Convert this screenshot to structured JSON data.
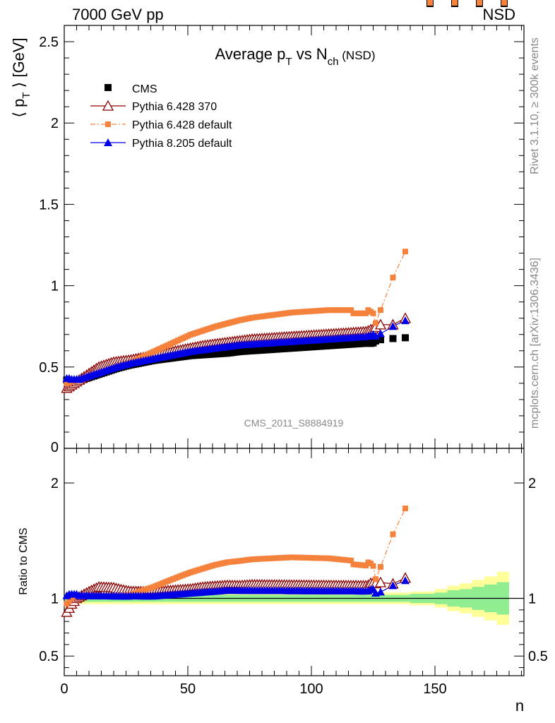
{
  "header": {
    "left": "7000 GeV pp",
    "right": "NSD"
  },
  "side_notes": {
    "rivet": "Rivet 3.1.10, ≥ 300k events",
    "mcplots": "mcplots.cern.ch [arXiv:1306.3436]"
  },
  "colors": {
    "cms": "#000000",
    "py6_370": "#8b0000",
    "py6_default": "#f5823c",
    "py8": "#0000e6",
    "band_inner": "#90ee90",
    "band_outer": "#ffff99"
  },
  "chart_data": [
    {
      "type": "scatter",
      "title": "Average p_T vs N_ch (NSD)",
      "title_parts": {
        "main": "Average p",
        "sub1": "T",
        "mid": " vs N",
        "sub2": "ch",
        "tail": " (NSD)"
      },
      "ylabel": "⟨ p_T ⟩ [GeV]",
      "ylabel_parts": {
        "pre": "⟨ p",
        "sub": "T",
        "post": " ⟩ [GeV]"
      },
      "analysis_label": "CMS_2011_S8884919",
      "xlim": [
        0,
        186
      ],
      "ylim": [
        0,
        2.6
      ],
      "yticks": [
        0.5,
        1,
        1.5,
        2,
        2.5
      ],
      "ytick_labels": [
        "0.5",
        "1",
        "1.5",
        "2",
        "2.5"
      ],
      "bottom_tick_label": "0",
      "legend_position": "top-left",
      "x": [
        1,
        2,
        3,
        4,
        5,
        6,
        7,
        8,
        9,
        10,
        11,
        12,
        13,
        14,
        15,
        16,
        17,
        18,
        19,
        20,
        21,
        22,
        23,
        24,
        25,
        26,
        27,
        28,
        29,
        30,
        31,
        32,
        33,
        34,
        35,
        36,
        37,
        38,
        39,
        40,
        41,
        42,
        43,
        44,
        45,
        46,
        47,
        48,
        49,
        50,
        51,
        52,
        53,
        54,
        55,
        56,
        57,
        58,
        59,
        60,
        61,
        62,
        63,
        64,
        65,
        66,
        67,
        68,
        69,
        70,
        71,
        72,
        73,
        74,
        75,
        76,
        77,
        78,
        79,
        80,
        81,
        82,
        83,
        84,
        85,
        86,
        87,
        88,
        89,
        90,
        91,
        92,
        93,
        94,
        95,
        96,
        97,
        98,
        99,
        100,
        101,
        102,
        103,
        104,
        105,
        106,
        107,
        108,
        109,
        110,
        111,
        112,
        113,
        114,
        115,
        116,
        117,
        118,
        119,
        120,
        121,
        122,
        123,
        124,
        125,
        126,
        128,
        133,
        138,
        148,
        158,
        168,
        178
      ],
      "series": [
        {
          "name": "CMS",
          "marker": "square",
          "values": [
            0.42,
            0.415,
            0.41,
            0.41,
            0.41,
            0.415,
            0.42,
            0.425,
            0.43,
            0.435,
            0.44,
            0.445,
            0.45,
            0.455,
            0.46,
            0.465,
            0.47,
            0.475,
            0.48,
            0.485,
            0.49,
            0.494,
            0.498,
            0.502,
            0.506,
            0.51,
            0.513,
            0.516,
            0.519,
            0.522,
            0.525,
            0.528,
            0.531,
            0.534,
            0.537,
            0.54,
            0.542,
            0.544,
            0.546,
            0.548,
            0.55,
            0.552,
            0.554,
            0.556,
            0.558,
            0.56,
            0.562,
            0.564,
            0.566,
            0.568,
            0.57,
            0.571,
            0.572,
            0.573,
            0.574,
            0.575,
            0.576,
            0.577,
            0.578,
            0.579,
            0.58,
            0.581,
            0.582,
            0.583,
            0.584,
            0.585,
            0.587,
            0.589,
            0.591,
            0.593,
            0.595,
            0.596,
            0.597,
            0.598,
            0.599,
            0.6,
            0.601,
            0.602,
            0.603,
            0.604,
            0.605,
            0.606,
            0.607,
            0.608,
            0.609,
            0.61,
            0.611,
            0.612,
            0.613,
            0.614,
            0.615,
            0.616,
            0.617,
            0.618,
            0.619,
            0.62,
            0.621,
            0.622,
            0.623,
            0.624,
            0.625,
            0.626,
            0.627,
            0.628,
            0.629,
            0.63,
            0.631,
            0.632,
            0.633,
            0.634,
            0.635,
            0.636,
            0.637,
            0.638,
            0.639,
            0.64,
            0.641,
            0.642,
            0.643,
            0.644,
            0.645,
            0.646,
            0.648,
            0.645,
            0.648,
            0.66,
            0.668,
            0.675,
            0.68
          ]
        },
        {
          "name": "Pythia 6.428 370",
          "marker": "open-triangle",
          "line": "solid",
          "values": [
            0.37,
            0.38,
            0.39,
            0.4,
            0.41,
            0.42,
            0.43,
            0.44,
            0.45,
            0.46,
            0.47,
            0.48,
            0.49,
            0.5,
            0.505,
            0.51,
            0.515,
            0.52,
            0.525,
            0.53,
            0.532,
            0.534,
            0.536,
            0.538,
            0.54,
            0.542,
            0.544,
            0.547,
            0.55,
            0.553,
            0.556,
            0.559,
            0.562,
            0.565,
            0.568,
            0.571,
            0.574,
            0.577,
            0.58,
            0.583,
            0.586,
            0.589,
            0.592,
            0.595,
            0.598,
            0.601,
            0.604,
            0.607,
            0.61,
            0.613,
            0.616,
            0.619,
            0.622,
            0.625,
            0.628,
            0.631,
            0.633,
            0.635,
            0.637,
            0.639,
            0.641,
            0.643,
            0.645,
            0.647,
            0.649,
            0.651,
            0.653,
            0.655,
            0.657,
            0.659,
            0.661,
            0.663,
            0.665,
            0.667,
            0.669,
            0.671,
            0.672,
            0.673,
            0.674,
            0.675,
            0.676,
            0.677,
            0.678,
            0.679,
            0.68,
            0.681,
            0.682,
            0.683,
            0.684,
            0.685,
            0.686,
            0.687,
            0.688,
            0.689,
            0.69,
            0.691,
            0.692,
            0.693,
            0.694,
            0.695,
            0.696,
            0.697,
            0.698,
            0.699,
            0.7,
            0.701,
            0.702,
            0.703,
            0.704,
            0.705,
            0.706,
            0.707,
            0.708,
            0.709,
            0.71,
            0.711,
            0.712,
            0.713,
            0.714,
            0.715,
            0.716,
            0.717,
            0.722,
            0.73,
            0.735,
            0.745,
            0.76,
            0.76,
            0.8
          ]
        },
        {
          "name": "Pythia 6.428 default",
          "marker": "square-small",
          "line": "dashdot",
          "values": [
            0.4,
            0.405,
            0.41,
            0.415,
            0.42,
            0.425,
            0.43,
            0.435,
            0.44,
            0.445,
            0.45,
            0.455,
            0.46,
            0.465,
            0.47,
            0.475,
            0.48,
            0.485,
            0.49,
            0.495,
            0.5,
            0.505,
            0.51,
            0.515,
            0.52,
            0.525,
            0.53,
            0.537,
            0.544,
            0.551,
            0.558,
            0.565,
            0.572,
            0.579,
            0.586,
            0.593,
            0.6,
            0.607,
            0.614,
            0.621,
            0.628,
            0.635,
            0.642,
            0.649,
            0.656,
            0.663,
            0.67,
            0.677,
            0.684,
            0.691,
            0.698,
            0.703,
            0.708,
            0.713,
            0.718,
            0.723,
            0.728,
            0.733,
            0.738,
            0.743,
            0.748,
            0.752,
            0.756,
            0.76,
            0.764,
            0.768,
            0.772,
            0.776,
            0.78,
            0.784,
            0.788,
            0.791,
            0.794,
            0.797,
            0.8,
            0.803,
            0.805,
            0.807,
            0.809,
            0.811,
            0.813,
            0.815,
            0.817,
            0.819,
            0.821,
            0.823,
            0.825,
            0.827,
            0.829,
            0.831,
            0.833,
            0.835,
            0.836,
            0.837,
            0.838,
            0.839,
            0.84,
            0.841,
            0.842,
            0.843,
            0.844,
            0.845,
            0.846,
            0.847,
            0.848,
            0.849,
            0.85,
            0.85,
            0.85,
            0.85,
            0.85,
            0.85,
            0.85,
            0.85,
            0.85,
            0.85,
            0.83,
            0.83,
            0.83,
            0.83,
            0.83,
            0.83,
            0.85,
            0.84,
            0.83,
            0.77,
            0.85,
            1.05,
            1.21
          ]
        },
        {
          "name": "Pythia 8.205 default",
          "marker": "filled-triangle",
          "line": "solid",
          "values": [
            0.43,
            0.43,
            0.425,
            0.425,
            0.425,
            0.425,
            0.43,
            0.435,
            0.44,
            0.445,
            0.45,
            0.455,
            0.46,
            0.465,
            0.47,
            0.475,
            0.48,
            0.485,
            0.49,
            0.495,
            0.5,
            0.504,
            0.508,
            0.512,
            0.516,
            0.52,
            0.524,
            0.527,
            0.53,
            0.533,
            0.536,
            0.539,
            0.542,
            0.545,
            0.548,
            0.551,
            0.554,
            0.557,
            0.56,
            0.563,
            0.566,
            0.569,
            0.572,
            0.575,
            0.578,
            0.581,
            0.584,
            0.587,
            0.59,
            0.593,
            0.596,
            0.598,
            0.6,
            0.602,
            0.604,
            0.606,
            0.608,
            0.61,
            0.612,
            0.614,
            0.616,
            0.618,
            0.62,
            0.622,
            0.624,
            0.626,
            0.628,
            0.63,
            0.632,
            0.634,
            0.636,
            0.637,
            0.638,
            0.639,
            0.64,
            0.641,
            0.642,
            0.643,
            0.644,
            0.645,
            0.646,
            0.647,
            0.648,
            0.649,
            0.65,
            0.651,
            0.652,
            0.653,
            0.654,
            0.655,
            0.656,
            0.657,
            0.658,
            0.659,
            0.66,
            0.661,
            0.662,
            0.663,
            0.664,
            0.665,
            0.666,
            0.667,
            0.668,
            0.669,
            0.67,
            0.671,
            0.672,
            0.673,
            0.674,
            0.675,
            0.676,
            0.677,
            0.678,
            0.679,
            0.68,
            0.681,
            0.682,
            0.683,
            0.684,
            0.685,
            0.686,
            0.687,
            0.69,
            0.695,
            0.7,
            0.69,
            0.705,
            0.75,
            0.785
          ]
        }
      ]
    },
    {
      "type": "scatter",
      "ylabel": "Ratio to CMS",
      "xlabel": "n",
      "xlim": [
        0,
        186
      ],
      "ylim": [
        0.33,
        2.3
      ],
      "yticks": [
        0.5,
        1,
        2
      ],
      "ytick_labels": [
        "0.5",
        "1",
        "2"
      ],
      "xticks": [
        0,
        50,
        100,
        150
      ],
      "xtick_labels": [
        "0",
        "50",
        "100",
        "150"
      ],
      "reference_line": 1,
      "uncertainty_band_inner": {
        "x_edges": [
          0,
          10,
          20,
          30,
          40,
          50,
          60,
          70,
          80,
          90,
          100,
          110,
          120,
          130,
          140,
          150,
          155,
          160,
          165,
          170,
          175,
          180
        ],
        "half_width": [
          0.03,
          0.03,
          0.03,
          0.03,
          0.03,
          0.03,
          0.03,
          0.03,
          0.03,
          0.03,
          0.03,
          0.03,
          0.03,
          0.03,
          0.04,
          0.05,
          0.07,
          0.08,
          0.1,
          0.12,
          0.14
        ]
      },
      "uncertainty_band_outer": {
        "x_edges": [
          0,
          10,
          20,
          30,
          40,
          50,
          60,
          70,
          80,
          90,
          100,
          110,
          120,
          130,
          140,
          150,
          155,
          160,
          165,
          170,
          175,
          180
        ],
        "half_width": [
          0.05,
          0.05,
          0.05,
          0.05,
          0.05,
          0.05,
          0.05,
          0.05,
          0.05,
          0.05,
          0.05,
          0.05,
          0.05,
          0.05,
          0.06,
          0.08,
          0.11,
          0.13,
          0.16,
          0.19,
          0.23
        ]
      }
    }
  ]
}
